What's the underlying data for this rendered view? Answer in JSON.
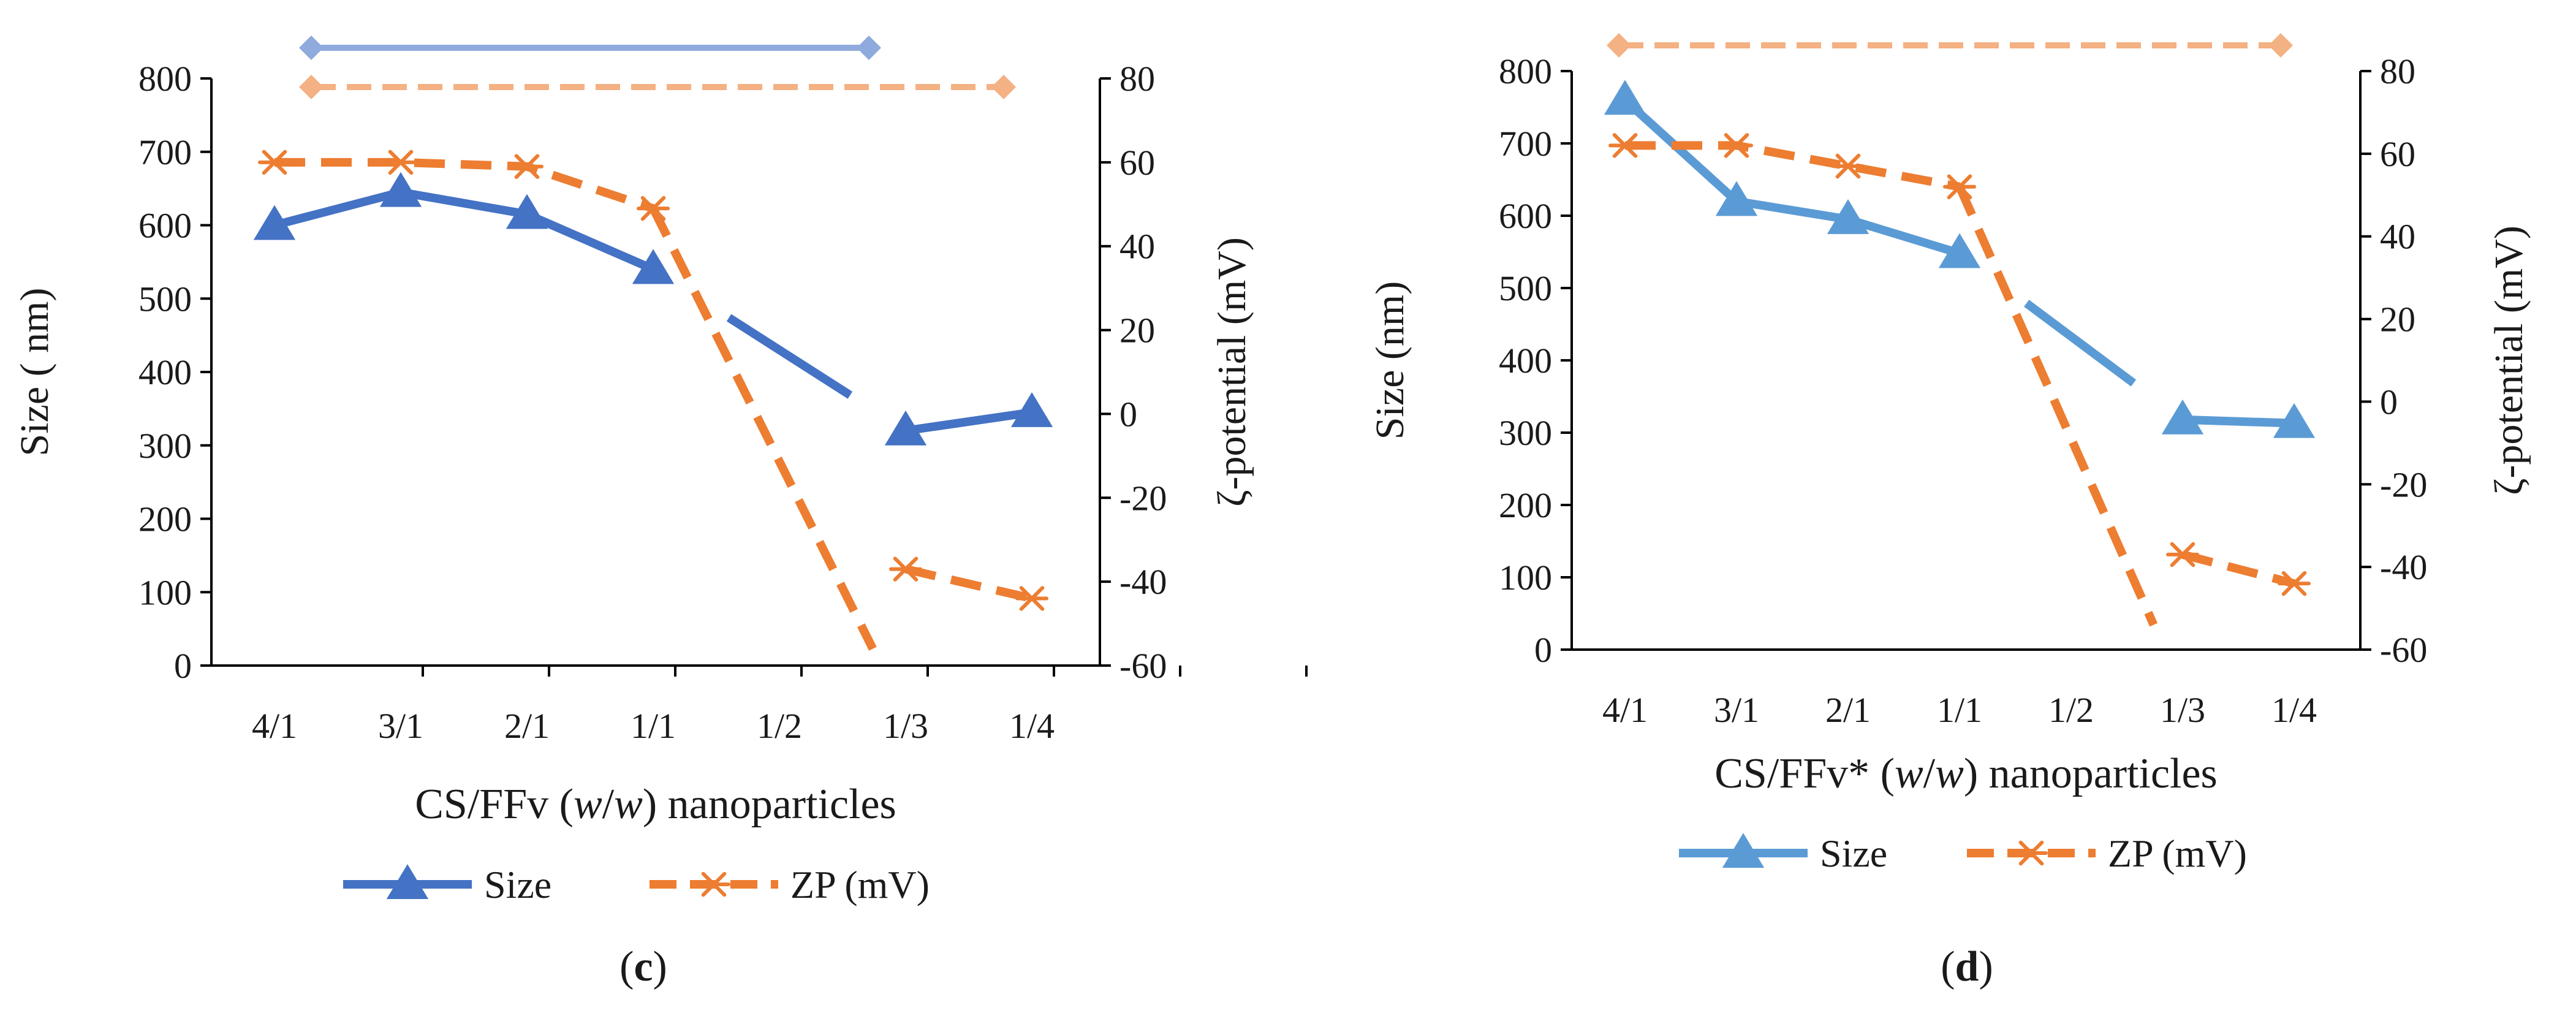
{
  "chart_data": [
    {
      "type": "line",
      "panel_label": "c",
      "categories": [
        "4/1",
        "3/1",
        "2/1",
        "1/1",
        "1/2",
        "1/3",
        "1/4"
      ],
      "xlabel": "CS/FFv (w/w) nanoparticles",
      "xlabel_parts": [
        "CS/FFv (",
        "w",
        "/",
        "w",
        ") nanoparticles"
      ],
      "ylabel": "Size ( nm)",
      "y2label": "ζ-potential (mV)",
      "ylim": [
        0,
        800
      ],
      "yticks": [
        "0",
        "100",
        "200",
        "300",
        "400",
        "500",
        "600",
        "700",
        "800"
      ],
      "y2lim": [
        -60,
        80
      ],
      "y2ticks": [
        "-60",
        "-40",
        "-20",
        "0",
        "20",
        "40",
        "60",
        "80"
      ],
      "legend_position": "bottom",
      "series": [
        {
          "name": "Size",
          "axis": "left",
          "color": "#4472C4",
          "line_style": "solid",
          "marker": "triangle",
          "values": [
            600,
            645,
            615,
            540,
            null,
            320,
            345
          ]
        },
        {
          "name": "ZP (mV)",
          "axis": "right",
          "color": "#ED7D31",
          "line_style": "dashed",
          "marker": "asterisk",
          "values": [
            60,
            60,
            59,
            49,
            null,
            -37,
            -44
          ]
        }
      ],
      "legend": [
        "Size",
        "ZP (mV)"
      ]
    },
    {
      "type": "line",
      "panel_label": "d",
      "categories": [
        "4/1",
        "3/1",
        "2/1",
        "1/1",
        "1/2",
        "1/3",
        "1/4"
      ],
      "xlabel": "CS/FFv* (w/w) nanoparticles",
      "xlabel_parts": [
        "CS/FFv* (",
        "w",
        "/",
        "w",
        ") nanoparticles"
      ],
      "ylabel": "Size (nm)",
      "y2label": "ζ-potential (mV)",
      "ylim": [
        0,
        800
      ],
      "yticks": [
        "0",
        "100",
        "200",
        "300",
        "400",
        "500",
        "600",
        "700",
        "800"
      ],
      "y2lim": [
        -60,
        80
      ],
      "y2ticks": [
        "-60",
        "-40",
        "-20",
        "0",
        "20",
        "40",
        "60",
        "80"
      ],
      "legend_position": "bottom",
      "series": [
        {
          "name": "Size",
          "axis": "left",
          "color": "#5B9BD5",
          "line_style": "solid",
          "marker": "triangle",
          "values": [
            760,
            620,
            595,
            548,
            null,
            318,
            313
          ]
        },
        {
          "name": "ZP (mV)",
          "axis": "right",
          "color": "#ED7D31",
          "line_style": "dashed",
          "marker": "asterisk",
          "values": [
            62,
            62,
            57,
            52,
            null,
            -37,
            -44
          ]
        }
      ],
      "legend": [
        "Size",
        "ZP (mV)"
      ]
    }
  ]
}
